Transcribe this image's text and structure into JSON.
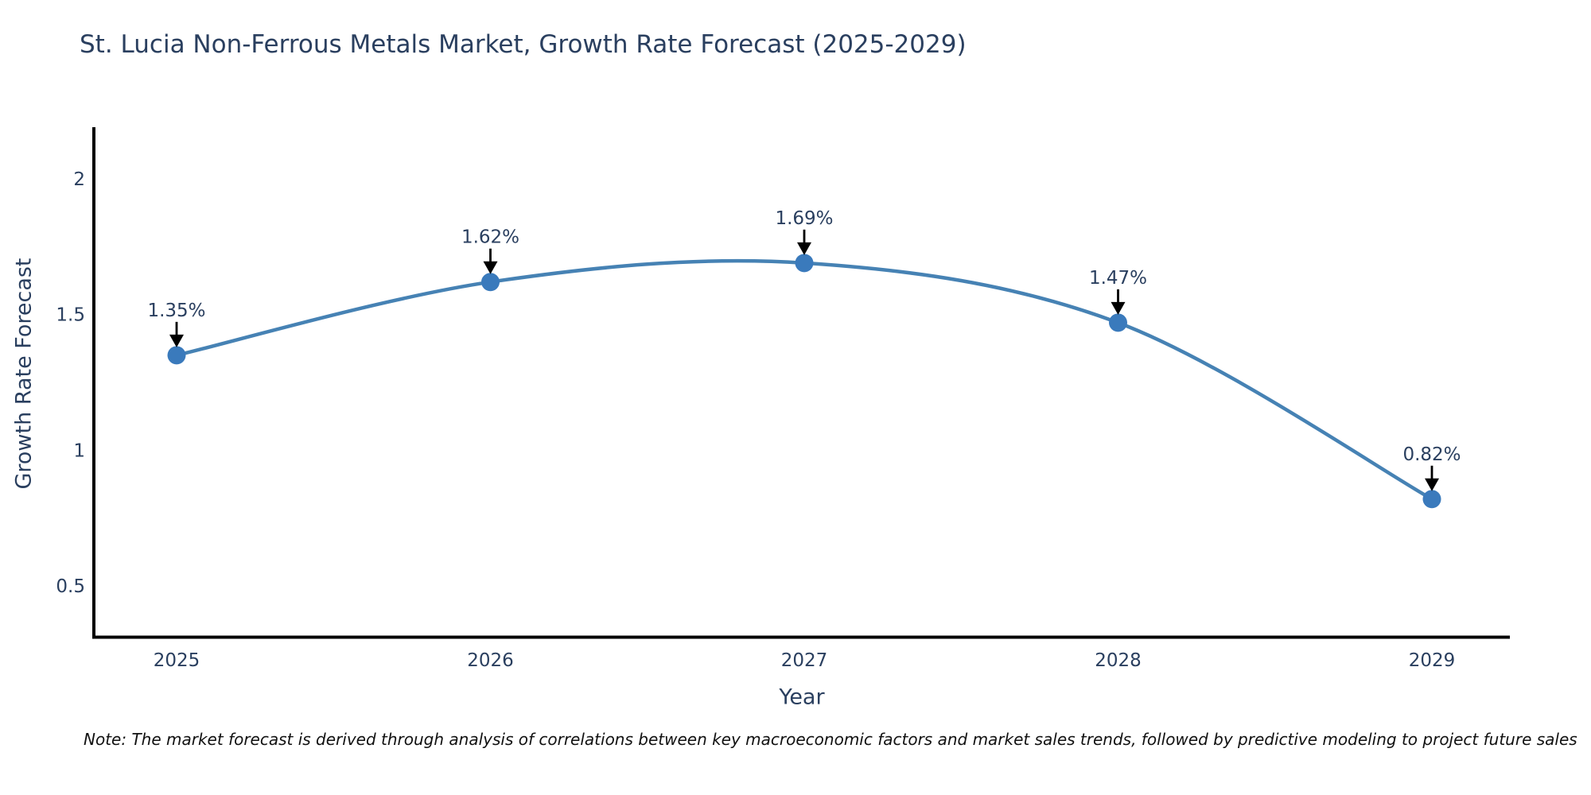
{
  "note": "Note: The market forecast is derived through analysis of correlations between key macroeconomic factors and market sales trends, followed by predictive modeling to project future sales",
  "chart_data": {
    "type": "line",
    "title": "St. Lucia Non-Ferrous Metals Market, Growth Rate Forecast (2025-2029)",
    "xlabel": "Year",
    "ylabel": "Growth Rate Forecast",
    "categories": [
      "2025",
      "2026",
      "2027",
      "2028",
      "2029"
    ],
    "series": [
      {
        "name": "Growth Rate Forecast",
        "values": [
          1.35,
          1.62,
          1.69,
          1.47,
          0.82
        ]
      }
    ],
    "point_labels": [
      "1.35%",
      "1.62%",
      "1.69%",
      "1.47%",
      "0.82%"
    ],
    "yticks": [
      2,
      1.5,
      1,
      0.5
    ],
    "ytick_labels": [
      "2",
      "1.5",
      "1",
      "0.5"
    ],
    "ylim": [
      0.31,
      2.19
    ],
    "grid": false,
    "legend_position": "none",
    "line_shape": "spline",
    "annotations_have_arrows": true,
    "colors": {
      "line": "#4682b4",
      "marker": "#3a7abc",
      "axis": "#000000",
      "text": "#2a3f5f",
      "annotation_text": "#2a3f5f",
      "annotation_arrow": "#000000",
      "note_text": "#111111"
    }
  }
}
